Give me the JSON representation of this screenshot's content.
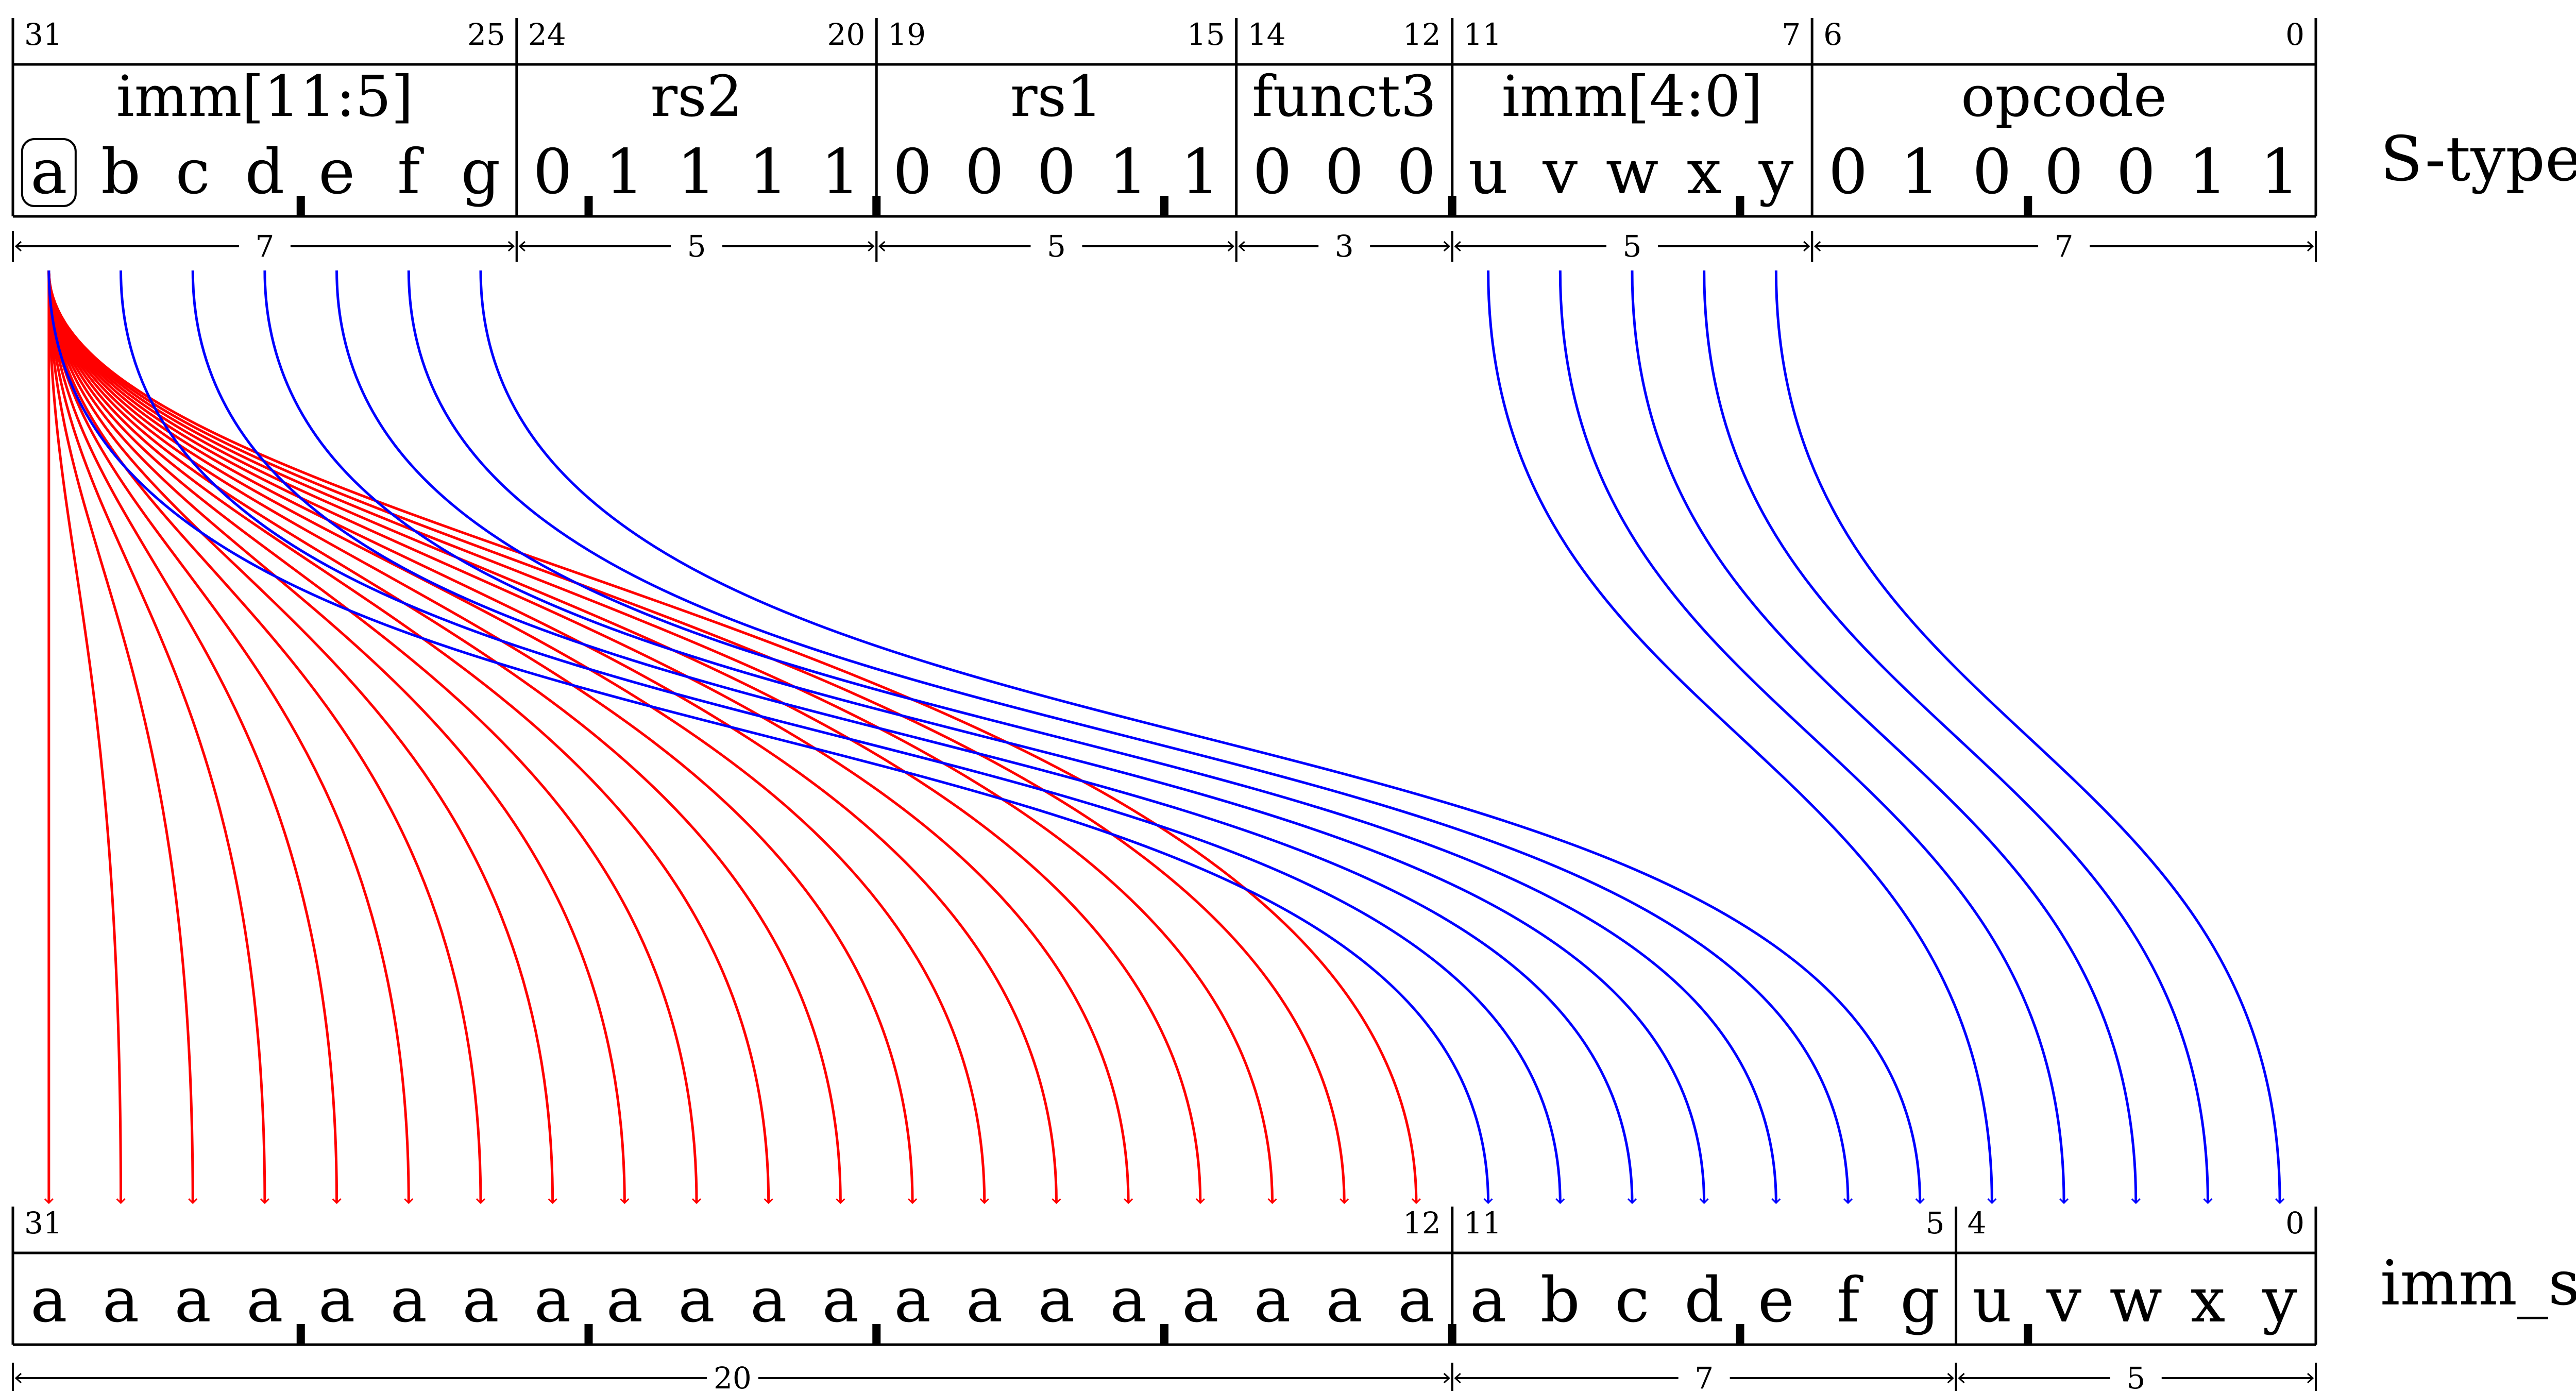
{
  "top_row": {
    "name": "S-type",
    "fields": [
      {
        "name": "imm[11:5]",
        "msb": "31",
        "lsb": "25",
        "width": "7",
        "bits": [
          "a",
          "b",
          "c",
          "d",
          "e",
          "f",
          "g"
        ],
        "boxed_bit": 0
      },
      {
        "name": "rs2",
        "msb": "24",
        "lsb": "20",
        "width": "5",
        "bits": [
          "0",
          "1",
          "1",
          "1",
          "1"
        ]
      },
      {
        "name": "rs1",
        "msb": "19",
        "lsb": "15",
        "width": "5",
        "bits": [
          "0",
          "0",
          "0",
          "1",
          "1"
        ]
      },
      {
        "name": "funct3",
        "msb": "14",
        "lsb": "12",
        "width": "3",
        "bits": [
          "0",
          "0",
          "0"
        ]
      },
      {
        "name": "imm[4:0]",
        "msb": "11",
        "lsb": "7",
        "width": "5",
        "bits": [
          "u",
          "v",
          "w",
          "x",
          "y"
        ]
      },
      {
        "name": "opcode",
        "msb": "6",
        "lsb": "0",
        "width": "7",
        "bits": [
          "0",
          "1",
          "0",
          "0",
          "0",
          "1",
          "1"
        ]
      }
    ]
  },
  "bottom_row": {
    "name": "imm_s",
    "fields": [
      {
        "msb": "31",
        "lsb": "12",
        "width": "20",
        "bits": [
          "a",
          "a",
          "a",
          "a",
          "a",
          "a",
          "a",
          "a",
          "a",
          "a",
          "a",
          "a",
          "a",
          "a",
          "a",
          "a",
          "a",
          "a",
          "a",
          "a"
        ]
      },
      {
        "msb": "11",
        "lsb": "5",
        "width": "7",
        "bits": [
          "a",
          "b",
          "c",
          "d",
          "e",
          "f",
          "g"
        ]
      },
      {
        "msb": "4",
        "lsb": "0",
        "width": "5",
        "bits": [
          "u",
          "v",
          "w",
          "x",
          "y"
        ]
      }
    ]
  },
  "colors": {
    "sign_extension_arrows": "#ff0000",
    "bit_mapping_arrows": "#0000ff",
    "frame": "#000000"
  }
}
